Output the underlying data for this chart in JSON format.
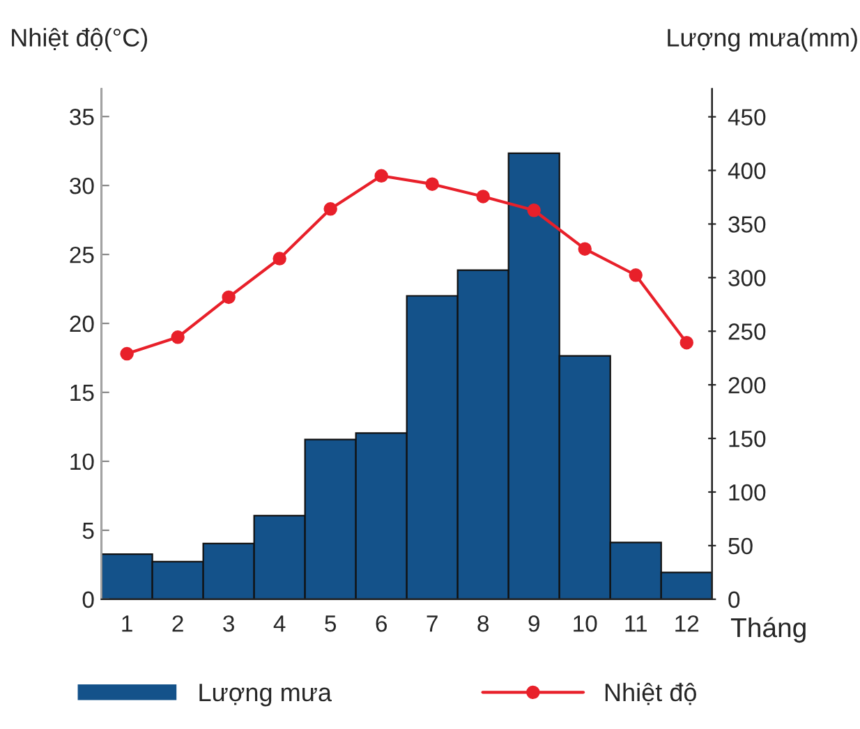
{
  "chart_data": {
    "type": "bar",
    "categories": [
      "1",
      "2",
      "3",
      "4",
      "5",
      "6",
      "7",
      "8",
      "9",
      "10",
      "11",
      "12"
    ],
    "ylabel": "Nhiệt độ(°C)",
    "y2label": "Lượng mưa(mm)",
    "xlabel": "Tháng",
    "series": [
      {
        "name": "Lượng mưa",
        "axis": "y2",
        "color": "#14528a",
        "values": [
          42,
          35,
          52,
          78,
          149,
          155,
          283,
          307,
          416,
          227,
          53,
          25
        ]
      },
      {
        "name": "Nhiệt độ",
        "type": "line",
        "axis": "y",
        "color": "#e8202a",
        "marker": "circle",
        "values": [
          17.8,
          19.0,
          21.9,
          24.7,
          28.3,
          30.7,
          30.1,
          29.2,
          28.2,
          25.4,
          23.5,
          18.6
        ]
      }
    ],
    "ylim": [
      0,
      37
    ],
    "yticks": [
      0,
      5,
      10,
      15,
      20,
      25,
      30,
      35
    ],
    "y2lim": [
      0,
      476
    ],
    "y2ticks": [
      0,
      50,
      100,
      150,
      200,
      250,
      300,
      350,
      400,
      450
    ],
    "grid": false,
    "legend": "bottom"
  }
}
